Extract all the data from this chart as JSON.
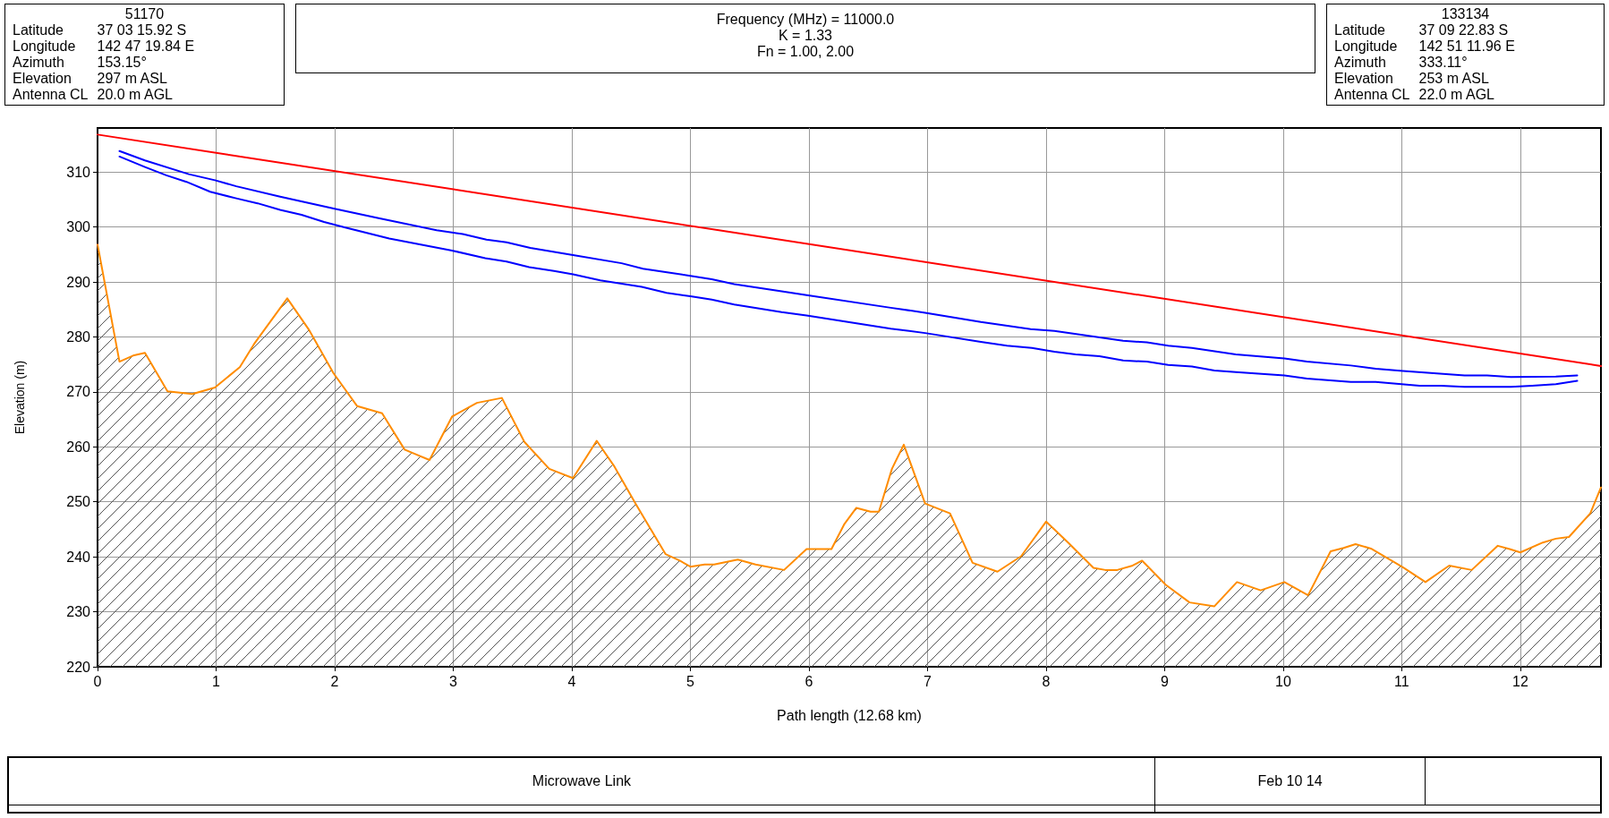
{
  "chart_data": {
    "type": "line",
    "xlabel": "Path length (12.68 km)",
    "ylabel": "Elevation (m)",
    "xlim": [
      0,
      12.68
    ],
    "xticks": [
      0,
      1,
      2,
      3,
      4,
      5,
      6,
      7,
      8,
      9,
      10,
      11,
      12
    ],
    "ylim": [
      220,
      318
    ],
    "yticks": [
      220,
      230,
      240,
      250,
      260,
      270,
      280,
      290,
      300,
      310
    ],
    "grid": true,
    "marker": "none",
    "line_style": "solid",
    "annotations": [
      "51170\nLatitude\t37 03 15.92 S\nLongitude\t142 47 19.84 E\nAzimuth\t153.15°\nElevation\t297 m ASL\nAntenna CL\t20.0 m AGL",
      "Frequency (MHz) = 11000.0\nK = 1.33\nFn = 1.00, 2.00",
      "133134\nLatitude\t37 09 22.83 S\nLongitude\t142 51 11.96 E\nAzimuth\t333.11°\nElevation\t253 m ASL\nAntenna CL\t22.0 m AGL",
      "Microwave Link\tFeb 10 14"
    ],
    "series": [
      {
        "type": "area",
        "color": "#ff8c00",
        "x": [
          0,
          0.185,
          0.3,
          0.4,
          0.59,
          0.8,
          0.99,
          1.2,
          1.32,
          1.6,
          1.78,
          1.99,
          2.19,
          2.4,
          2.59,
          2.8,
          2.99,
          3.2,
          3.41,
          3.6,
          3.81,
          4.01,
          4.21,
          4.36,
          4.54,
          4.79,
          4.91,
          5.0,
          5.12,
          5.2,
          5.4,
          5.55,
          5.79,
          5.98,
          6.19,
          6.3,
          6.4,
          6.52,
          6.59,
          6.7,
          6.8,
          6.98,
          7.19,
          7.38,
          7.59,
          7.79,
          8.0,
          8.19,
          8.4,
          8.5,
          8.6,
          8.73,
          8.81,
          9.01,
          9.21,
          9.42,
          9.61,
          9.81,
          10.01,
          10.21,
          10.4,
          10.51,
          10.61,
          10.74,
          11.01,
          11.2,
          11.4,
          11.59,
          11.81,
          11.91,
          12.0,
          12.19,
          12.3,
          12.41,
          12.59,
          12.68
        ],
        "values": [
          296.8,
          275.5,
          276.6,
          277.1,
          270.1,
          269.6,
          270.8,
          274.5,
          278.7,
          287.0,
          281.4,
          273.4,
          267.4,
          266.1,
          259.5,
          257.6,
          265.5,
          268.0,
          268.9,
          260.9,
          256.0,
          254.3,
          261.1,
          256.4,
          249.6,
          240.5,
          239.3,
          238.2,
          238.6,
          238.6,
          239.5,
          238.6,
          237.6,
          241.4,
          241.4,
          246.0,
          248.9,
          248.2,
          248.2,
          256.0,
          260.4,
          249.7,
          247.9,
          238.9,
          237.3,
          240.1,
          246.4,
          242.5,
          238.0,
          237.6,
          237.6,
          238.4,
          239.3,
          234.9,
          231.7,
          231.0,
          235.4,
          233.9,
          235.4,
          233.0,
          241.0,
          241.6,
          242.3,
          241.5,
          238.1,
          235.4,
          238.4,
          237.6,
          242.0,
          241.4,
          240.8,
          242.6,
          243.3,
          243.6,
          247.9,
          252.6
        ]
      },
      {
        "type": "line",
        "color": "#ff0000",
        "x": [
          0,
          12.68
        ],
        "values": [
          316.8,
          274.7
        ]
      },
      {
        "type": "line",
        "color": "#0000ff",
        "x": [
          0.185,
          0.4,
          0.77,
          0.99,
          1.17,
          1.54,
          2.0,
          2.37,
          2.86,
          3.08,
          3.28,
          3.45,
          3.65,
          4.01,
          4.42,
          4.6,
          4.79,
          5.0,
          5.18,
          5.37,
          5.77,
          5.98,
          6.69,
          6.98,
          7.45,
          7.87,
          8.07,
          8.65,
          8.85,
          9.03,
          9.23,
          9.6,
          10.01,
          10.2,
          10.57,
          10.78,
          11.01,
          11.53,
          11.72,
          11.92,
          12.3,
          12.48
        ],
        "values": [
          313.8,
          312.1,
          309.6,
          308.5,
          307.4,
          305.5,
          303.3,
          301.6,
          299.4,
          298.7,
          297.7,
          297.2,
          296.2,
          294.9,
          293.4,
          292.4,
          291.8,
          291.1,
          290.5,
          289.6,
          288.3,
          287.6,
          285.3,
          284.4,
          282.7,
          281.4,
          281.1,
          279.3,
          279.0,
          278.4,
          278.0,
          276.8,
          276.1,
          275.5,
          274.8,
          274.2,
          273.8,
          273.0,
          273.0,
          272.7,
          272.8,
          273.0
        ]
      },
      {
        "type": "line",
        "color": "#0000ff",
        "x": [
          0.185,
          0.4,
          0.58,
          0.75,
          0.95,
          1.17,
          1.35,
          1.54,
          1.72,
          1.91,
          2.09,
          2.46,
          2.99,
          3.27,
          3.45,
          3.64,
          3.85,
          4.01,
          4.24,
          4.59,
          4.8,
          5.0,
          5.18,
          5.37,
          5.77,
          5.98,
          6.69,
          6.98,
          7.45,
          7.67,
          7.88,
          8.07,
          8.25,
          8.45,
          8.65,
          8.85,
          9.03,
          9.23,
          9.42,
          9.6,
          10.01,
          10.2,
          10.57,
          10.78,
          11.15,
          11.33,
          11.53,
          11.92,
          12.1,
          12.3,
          12.48
        ],
        "values": [
          312.8,
          310.9,
          309.4,
          308.2,
          306.4,
          305.2,
          304.3,
          303.1,
          302.2,
          300.9,
          299.9,
          297.9,
          295.7,
          294.3,
          293.7,
          292.7,
          292.0,
          291.4,
          290.3,
          289.1,
          288.0,
          287.4,
          286.8,
          285.9,
          284.5,
          283.9,
          281.5,
          280.7,
          279.1,
          278.4,
          278.0,
          277.3,
          276.8,
          276.5,
          275.7,
          275.5,
          274.9,
          274.6,
          273.9,
          273.6,
          273.0,
          272.4,
          271.8,
          271.8,
          271.1,
          271.1,
          270.9,
          270.9,
          271.1,
          271.4,
          272.0
        ]
      }
    ]
  }
}
